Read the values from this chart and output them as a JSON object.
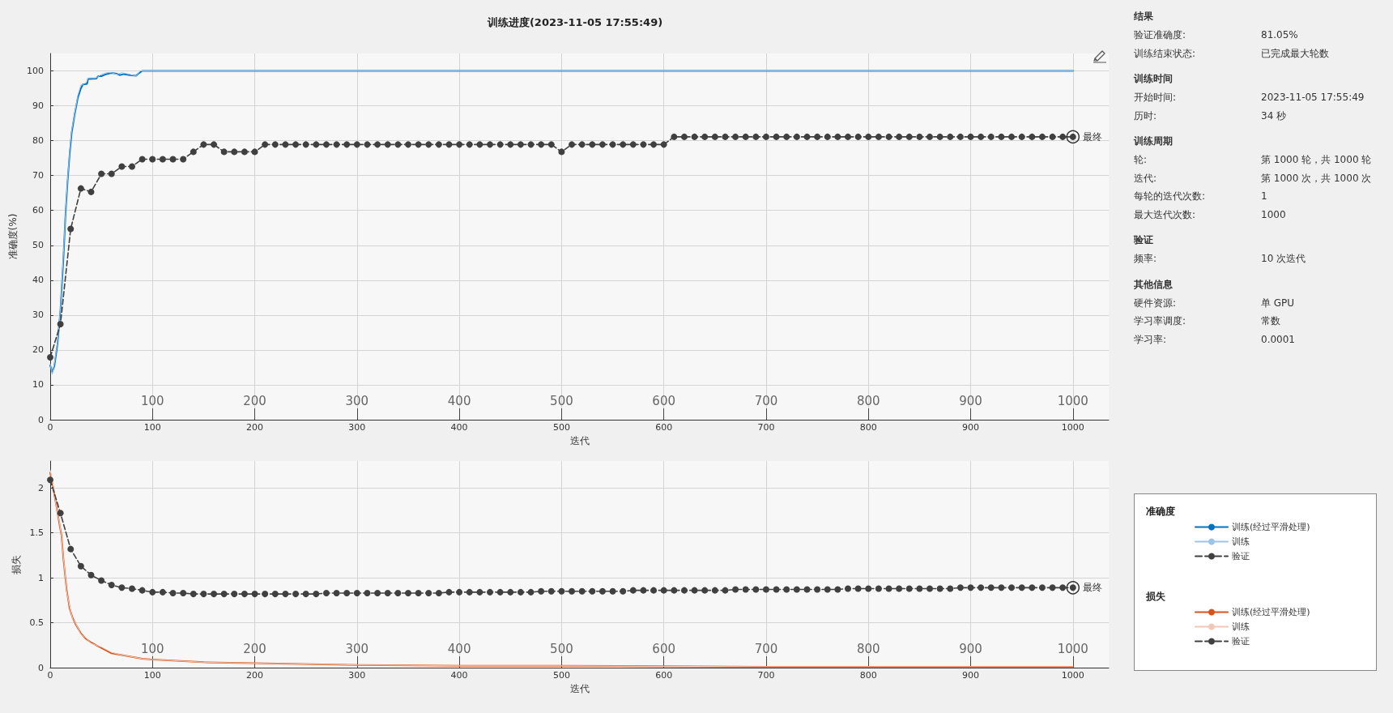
{
  "chart_data": [
    {
      "type": "line",
      "title": "训练进度(2023-11-05 17:55:49)",
      "xlabel": "迭代",
      "ylabel": "准确度(%)",
      "legend_title": "准确度",
      "xlim": [
        0,
        1035
      ],
      "xticks": [
        0,
        100,
        200,
        300,
        400,
        500,
        600,
        700,
        800,
        900,
        1000
      ],
      "x2lim": [
        0,
        1035
      ],
      "x2ticks": [
        100,
        200,
        300,
        400,
        500,
        600,
        700,
        800,
        900,
        1000
      ],
      "ylim": [
        0,
        105
      ],
      "yticks": [
        0,
        10,
        20,
        30,
        40,
        50,
        60,
        70,
        80,
        90,
        100
      ],
      "grid": true,
      "legend": "right",
      "annotations": [
        {
          "text": "最终",
          "x": 1000,
          "y": 81.1
        }
      ],
      "series": [
        {
          "name": "训练(经过平滑处理)",
          "color": "#0072bd",
          "marker": "none",
          "line_style": "solid",
          "x": [
            0,
            2,
            4,
            7,
            10,
            13,
            15,
            17,
            19,
            21,
            24,
            27,
            30,
            32,
            36,
            37,
            45,
            47,
            50,
            55,
            60,
            65,
            68,
            72,
            78,
            84,
            87,
            90,
            1000
          ],
          "values": [
            15.6,
            13.7,
            15.3,
            21.4,
            31.4,
            46.8,
            59.2,
            68.4,
            76.1,
            82.3,
            87.7,
            92.3,
            95,
            96.1,
            96.3,
            97.7,
            97.8,
            98.5,
            98.5,
            99.1,
            99.4,
            99.2,
            98.8,
            99.1,
            98.8,
            98.6,
            99.4,
            100,
            100
          ]
        },
        {
          "name": "训练",
          "color": "#9dc3e6",
          "marker": "none",
          "line_style": "solid",
          "x": [
            0,
            2,
            4,
            7,
            10,
            13,
            15,
            17,
            19,
            21,
            24,
            27,
            30,
            32,
            36,
            37,
            45,
            50,
            55,
            60,
            65,
            70,
            78,
            84,
            88,
            1000
          ],
          "values": [
            16,
            13,
            16,
            22,
            32,
            48,
            60,
            69,
            77,
            83,
            88,
            93,
            96,
            96,
            97,
            98,
            98,
            99,
            99.5,
            99.5,
            99,
            99.5,
            99,
            98.5,
            100,
            100
          ]
        },
        {
          "name": "验证",
          "color": "#404040",
          "marker": "circle",
          "line_style": "dashed",
          "x": [
            0,
            10,
            20,
            30,
            40,
            50,
            60,
            70,
            80,
            90,
            100,
            110,
            120,
            130,
            140,
            150,
            160,
            170,
            180,
            190,
            200,
            210,
            220,
            230,
            240,
            250,
            260,
            270,
            280,
            290,
            300,
            310,
            320,
            330,
            340,
            350,
            360,
            370,
            380,
            390,
            400,
            410,
            420,
            430,
            440,
            450,
            460,
            470,
            480,
            490,
            500,
            510,
            520,
            530,
            540,
            550,
            560,
            570,
            580,
            590,
            600,
            610,
            620,
            630,
            640,
            650,
            660,
            670,
            680,
            690,
            700,
            710,
            720,
            730,
            740,
            750,
            760,
            770,
            780,
            790,
            800,
            810,
            820,
            830,
            840,
            850,
            860,
            870,
            880,
            890,
            900,
            910,
            920,
            930,
            940,
            950,
            960,
            970,
            980,
            990,
            1000
          ],
          "values": [
            17.9,
            27.4,
            54.7,
            66.3,
            65.3,
            70.5,
            70.5,
            72.6,
            72.6,
            74.7,
            74.7,
            74.7,
            74.7,
            74.7,
            76.8,
            78.9,
            78.9,
            76.8,
            76.8,
            76.8,
            76.8,
            78.9,
            78.9,
            78.9,
            78.9,
            78.9,
            78.9,
            78.9,
            78.9,
            78.9,
            78.9,
            78.9,
            78.9,
            78.9,
            78.9,
            78.9,
            78.9,
            78.9,
            78.9,
            78.9,
            78.9,
            78.9,
            78.9,
            78.9,
            78.9,
            78.9,
            78.9,
            78.9,
            78.9,
            78.9,
            76.8,
            78.9,
            78.9,
            78.9,
            78.9,
            78.9,
            78.9,
            78.9,
            78.9,
            78.9,
            78.9,
            81.1,
            81.1,
            81.1,
            81.1,
            81.1,
            81.1,
            81.1,
            81.1,
            81.1,
            81.1,
            81.1,
            81.1,
            81.1,
            81.1,
            81.1,
            81.1,
            81.1,
            81.1,
            81.1,
            81.1,
            81.1,
            81.1,
            81.1,
            81.1,
            81.1,
            81.1,
            81.1,
            81.1,
            81.1,
            81.1,
            81.1,
            81.1,
            81.1,
            81.1,
            81.1,
            81.1,
            81.1,
            81.1,
            81.1,
            81.1
          ]
        }
      ]
    },
    {
      "type": "line",
      "xlabel": "迭代",
      "ylabel": "损失",
      "legend_title": "损失",
      "xlim": [
        0,
        1035
      ],
      "xticks": [
        0,
        100,
        200,
        300,
        400,
        500,
        600,
        700,
        800,
        900,
        1000
      ],
      "x2lim": [
        0,
        1035
      ],
      "x2ticks": [
        100,
        200,
        300,
        400,
        500,
        600,
        700,
        800,
        900,
        1000
      ],
      "ylim": [
        0,
        2.3
      ],
      "yticks": [
        0,
        0.5,
        1,
        1.5,
        2
      ],
      "grid": true,
      "legend": "right",
      "annotations": [
        {
          "text": "最终",
          "x": 1000,
          "y": 0.89
        }
      ],
      "series": [
        {
          "name": "训练(经过平滑处理)",
          "color": "#d95319",
          "marker": "none",
          "line_style": "solid",
          "x": [
            0,
            3,
            6,
            9,
            11,
            13,
            16,
            19,
            22,
            25,
            30,
            35,
            40,
            45,
            50,
            60,
            70,
            80,
            90,
            100,
            150,
            200,
            300,
            400,
            500,
            700,
            1000
          ],
          "values": [
            2.17,
            2.0,
            1.8,
            1.6,
            1.47,
            1.2,
            0.87,
            0.66,
            0.55,
            0.48,
            0.38,
            0.32,
            0.28,
            0.25,
            0.22,
            0.16,
            0.14,
            0.12,
            0.1,
            0.09,
            0.06,
            0.05,
            0.03,
            0.02,
            0.02,
            0.01,
            0.01
          ]
        },
        {
          "name": "训练",
          "color": "#f0c8b8",
          "marker": "none",
          "line_style": "solid",
          "x": [
            0,
            3,
            6,
            9,
            11,
            13,
            16,
            19,
            22,
            25,
            30,
            35,
            40,
            50,
            60,
            70,
            80,
            90,
            100,
            150,
            200,
            300,
            400,
            500,
            700,
            1000
          ],
          "values": [
            2.2,
            2.02,
            1.78,
            1.62,
            1.45,
            1.22,
            0.85,
            0.68,
            0.54,
            0.49,
            0.37,
            0.33,
            0.27,
            0.23,
            0.17,
            0.14,
            0.12,
            0.1,
            0.09,
            0.06,
            0.05,
            0.03,
            0.02,
            0.02,
            0.01,
            0.01
          ]
        },
        {
          "name": "验证",
          "color": "#404040",
          "marker": "circle",
          "line_style": "dashed",
          "x": [
            0,
            10,
            20,
            30,
            40,
            50,
            60,
            70,
            80,
            90,
            100,
            110,
            120,
            130,
            140,
            150,
            160,
            170,
            180,
            190,
            200,
            210,
            220,
            230,
            240,
            250,
            260,
            270,
            280,
            290,
            300,
            310,
            320,
            330,
            340,
            350,
            360,
            370,
            380,
            390,
            400,
            410,
            420,
            430,
            440,
            450,
            460,
            470,
            480,
            490,
            500,
            510,
            520,
            530,
            540,
            550,
            560,
            570,
            580,
            590,
            600,
            610,
            620,
            630,
            640,
            650,
            660,
            670,
            680,
            690,
            700,
            710,
            720,
            730,
            740,
            750,
            760,
            770,
            780,
            790,
            800,
            810,
            820,
            830,
            840,
            850,
            860,
            870,
            880,
            890,
            900,
            910,
            920,
            930,
            940,
            950,
            960,
            970,
            980,
            990,
            1000
          ],
          "values": [
            2.09,
            1.72,
            1.32,
            1.13,
            1.03,
            0.97,
            0.92,
            0.89,
            0.88,
            0.86,
            0.84,
            0.84,
            0.83,
            0.83,
            0.82,
            0.82,
            0.82,
            0.82,
            0.82,
            0.82,
            0.82,
            0.82,
            0.82,
            0.82,
            0.82,
            0.82,
            0.82,
            0.83,
            0.83,
            0.83,
            0.83,
            0.83,
            0.83,
            0.83,
            0.83,
            0.83,
            0.83,
            0.83,
            0.83,
            0.84,
            0.84,
            0.84,
            0.84,
            0.84,
            0.84,
            0.84,
            0.84,
            0.84,
            0.85,
            0.85,
            0.85,
            0.85,
            0.85,
            0.85,
            0.85,
            0.85,
            0.85,
            0.86,
            0.86,
            0.86,
            0.86,
            0.86,
            0.86,
            0.86,
            0.86,
            0.86,
            0.86,
            0.87,
            0.87,
            0.87,
            0.87,
            0.87,
            0.87,
            0.87,
            0.87,
            0.87,
            0.87,
            0.87,
            0.88,
            0.88,
            0.88,
            0.88,
            0.88,
            0.88,
            0.88,
            0.88,
            0.88,
            0.88,
            0.88,
            0.89,
            0.89,
            0.89,
            0.89,
            0.89,
            0.89,
            0.89,
            0.89,
            0.89,
            0.89,
            0.89,
            0.89
          ]
        }
      ]
    },
    {
      "type": "other",
      "title": "结果",
      "annotations": [
        "验证准确度:",
        "81.05%",
        "训练结束状态:",
        "已完成最大轮数"
      ]
    },
    {
      "type": "other",
      "title": "训练时间",
      "annotations": [
        "开始时间:",
        "2023-11-05 17:55:49",
        "历时:",
        "34 秒"
      ]
    },
    {
      "type": "other",
      "title": "训练周期",
      "annotations": [
        "轮:",
        "第 1000 轮，共 1000 轮",
        "迭代:",
        "第 1000 次，共 1000 次",
        "每轮的迭代次数:",
        "1",
        "最大迭代次数:",
        "1000"
      ]
    },
    {
      "type": "other",
      "title": "验证",
      "annotations": [
        "频率:",
        "10 次迭代"
      ]
    },
    {
      "type": "other",
      "title": "其他信息",
      "annotations": [
        "硬件资源:",
        "单 GPU",
        "学习率调度:",
        "常数",
        "学习率:",
        "0.0001"
      ]
    }
  ]
}
